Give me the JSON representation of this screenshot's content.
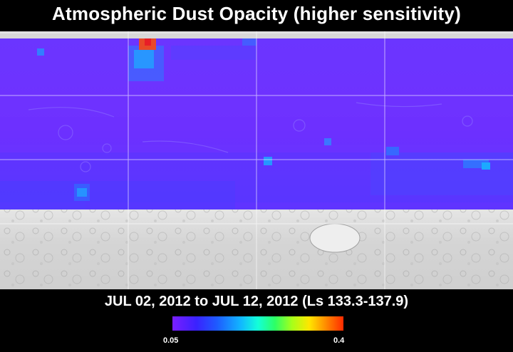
{
  "title": "Atmospheric Dust Opacity (higher sensitivity)",
  "subtitle": "JUL 02, 2012 to JUL 12, 2012 (Ls 133.3-137.9)",
  "colorbar": {
    "min_label": "0.05",
    "max_label": "0.4",
    "colors": [
      "#7a1fff",
      "#3a22ff",
      "#1e5bff",
      "#11b7ff",
      "#13ffd9",
      "#2dff65",
      "#a8ff19",
      "#ffe600",
      "#ff8800",
      "#ff2a00"
    ]
  },
  "map": {
    "base_color": "#6f34ff",
    "grid_color": "#ffffff",
    "terrain_color": "#d4d4d4"
  }
}
